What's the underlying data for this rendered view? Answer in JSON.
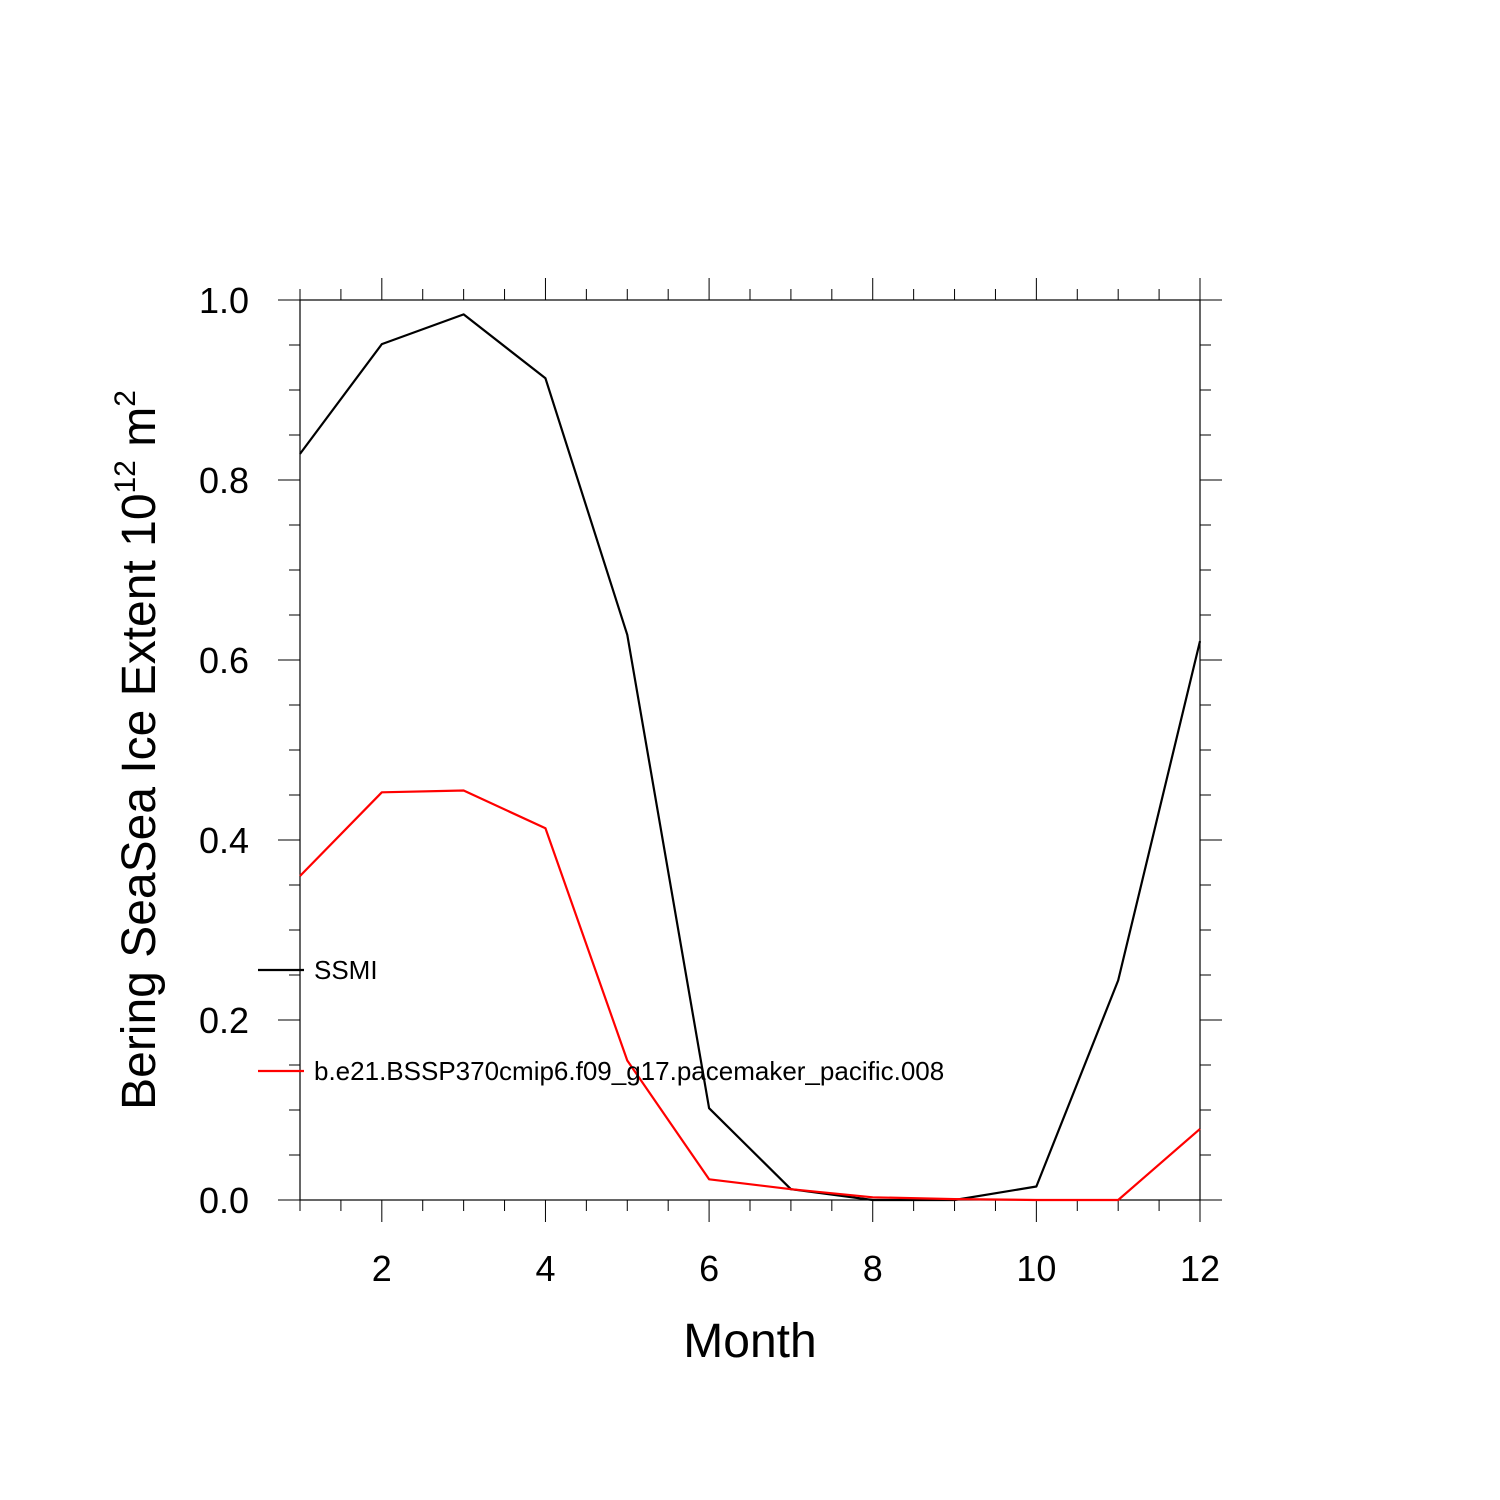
{
  "chart_data": {
    "type": "line",
    "xlabel": "Month",
    "ylabel_base": "Bering SeaSea Ice Extent 10",
    "ylabel_exponent": "12",
    "ylabel_unit": " m",
    "ylabel_unit_exponent": "2",
    "xlim": [
      1,
      12
    ],
    "ylim": [
      0,
      1
    ],
    "x_ticks": [
      2,
      4,
      6,
      8,
      10,
      12
    ],
    "x_tick_labels": [
      "2",
      "4",
      "6",
      "8",
      "10",
      "12"
    ],
    "y_ticks": [
      0,
      0.2,
      0.4,
      0.6,
      0.8,
      1.0
    ],
    "y_tick_labels": [
      "0.0",
      "0.2",
      "0.4",
      "0.6",
      "0.8",
      "1.0"
    ],
    "grid": false,
    "legend_placement": "left-inside",
    "x": [
      1,
      2,
      3,
      4,
      5,
      6,
      7,
      8,
      9,
      10,
      11,
      12
    ],
    "series": [
      {
        "name": "SSMI",
        "color": "#000000",
        "values": [
          0.829,
          0.951,
          0.984,
          0.913,
          0.628,
          0.102,
          0.012,
          0.0,
          0.0,
          0.015,
          0.244,
          0.621
        ]
      },
      {
        "name": "b.e21.BSSP370cmip6.f09_g17.pacemaker_pacific.008",
        "color": "#ff0000",
        "values": [
          0.36,
          0.453,
          0.455,
          0.413,
          0.155,
          0.023,
          0.012,
          0.003,
          0.001,
          0.0,
          0.0,
          0.079
        ]
      }
    ]
  }
}
